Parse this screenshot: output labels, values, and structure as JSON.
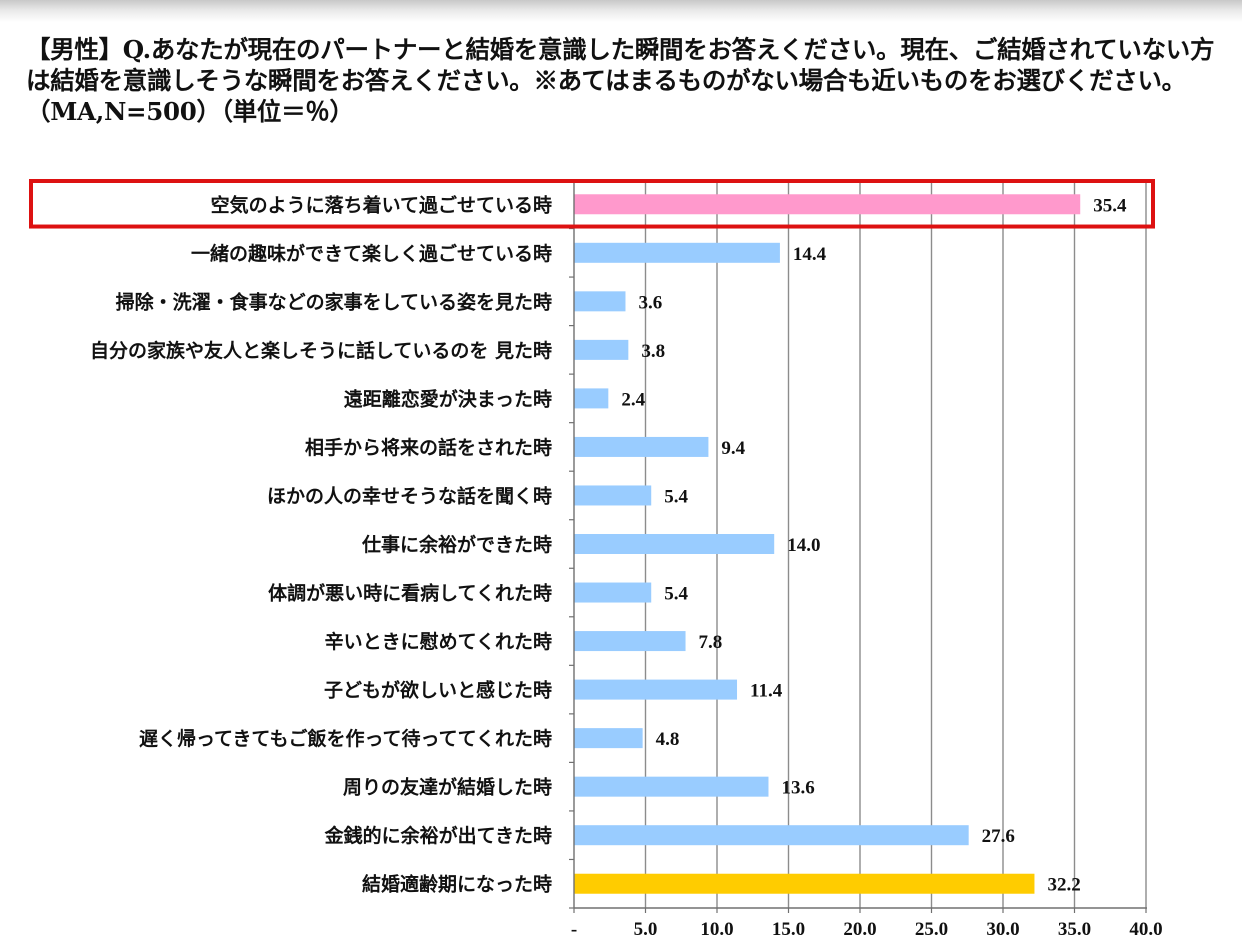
{
  "question": "【男性】Q.あなたが現在のパートナーと結婚を意識した瞬間をお答えください。現在、ご結婚されていない方は結婚を意識しそうな瞬間をお答えください。※あてはまるものがない場合も近いものをお選びください。（MA,N=500）（単位＝％）",
  "chart_data": {
    "type": "bar",
    "orientation": "horizontal",
    "title": "【男性】Q.あなたが現在のパートナーと結婚を意識した瞬間をお答えください。現在、ご結婚されていない方は結婚を意識しそうな瞬間をお答えください。※あてはまるものがない場合も近いものをお選びください。（MA,N=500）（単位＝％）",
    "categories": [
      "空気のように落ち着いて過ごせている時",
      "一緒の趣味ができて楽しく過ごせている時",
      "掃除・洗濯・食事などの家事をしている姿を見た時",
      "自分の家族や友人と楽しそうに話しているのを 見た時",
      "遠距離恋愛が決まった時",
      "相手から将来の話をされた時",
      "ほかの人の幸せそうな話を聞く時",
      "仕事に余裕ができた時",
      "体調が悪い時に看病してくれた時",
      "辛いときに慰めてくれた時",
      "子どもが欲しいと感じた時",
      "遅く帰ってきてもご飯を作って待っててくれた時",
      "周りの友達が結婚した時",
      "金銭的に余裕が出てきた時",
      "結婚適齢期になった時"
    ],
    "values": [
      35.4,
      14.4,
      3.6,
      3.8,
      2.4,
      9.4,
      5.4,
      14.0,
      5.4,
      7.8,
      11.4,
      4.8,
      13.6,
      27.6,
      32.2
    ],
    "value_labels": [
      "35.4",
      "14.4",
      "3.6",
      "3.8",
      "2.4",
      "9.4",
      "5.4",
      "14.0",
      "5.4",
      "7.8",
      "11.4",
      "4.8",
      "13.6",
      "27.6",
      "32.2"
    ],
    "xlim": [
      0,
      40
    ],
    "xticks": [
      0,
      5,
      10,
      15,
      20,
      25,
      30,
      35,
      40
    ],
    "xtick_labels": [
      "-",
      "5.0",
      "10.0",
      "15.0",
      "20.0",
      "25.0",
      "30.0",
      "35.0",
      "40.0"
    ],
    "grid": true,
    "highlighted_category_index": 0,
    "colors": {
      "default_bar": "#99ccff",
      "highlight_bar": "#ff99cc",
      "last_bar": "#ffcc00",
      "highlight_box": "#dd1111",
      "grid": "#8c8c8c"
    }
  }
}
